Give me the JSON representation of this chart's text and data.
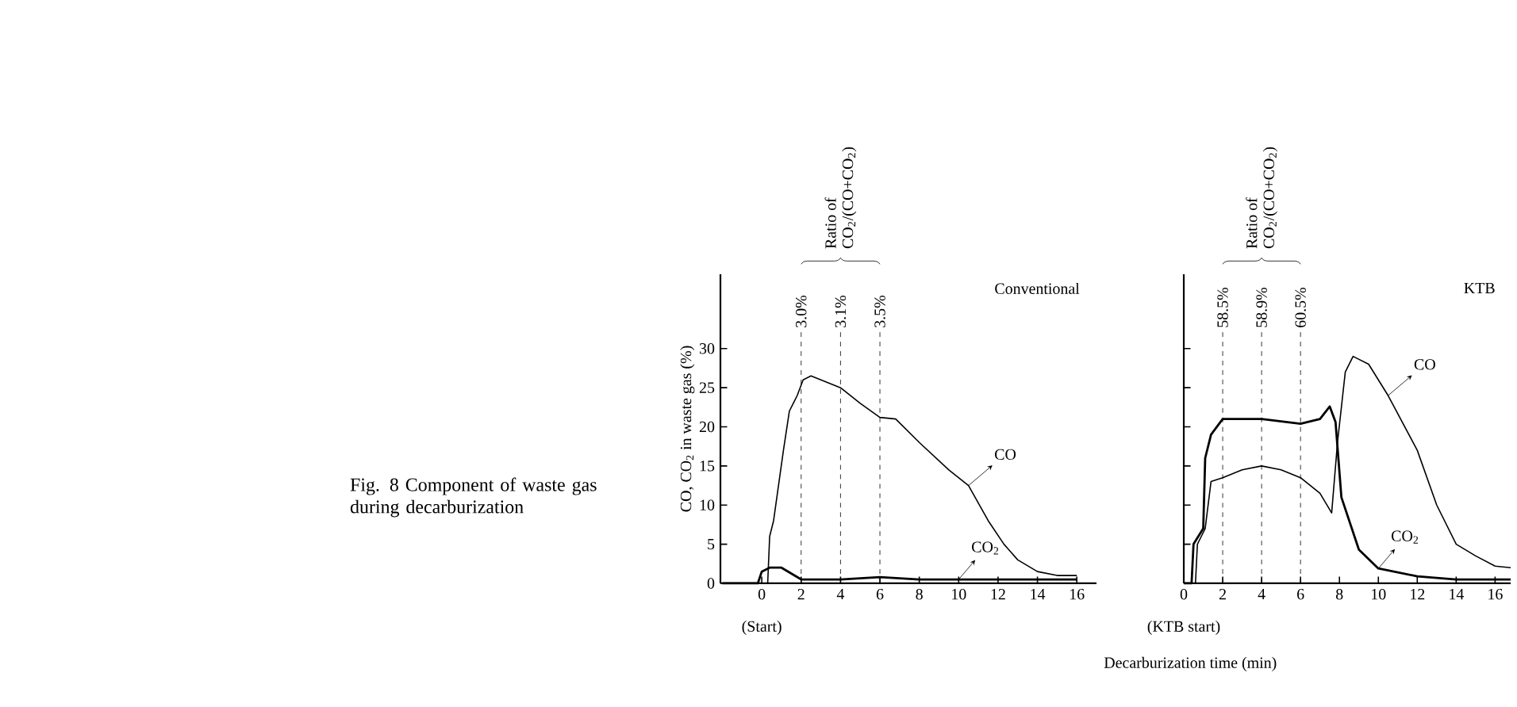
{
  "chart_data": [
    {
      "type": "line",
      "title": "Conventional",
      "ylabel": "CO, CO$_{2}$ in waste gas (%)",
      "annotations": [
        "Ratio of",
        "CO$_{2}$/(CO+CO$_{2}$)",
        "(Start)",
        "3.0%",
        "3.1%",
        "3.5%",
        "Fig. 8  Component of waste gas during decarburization"
      ],
      "xlim": [
        -2.1,
        17
      ],
      "xticks": [
        0,
        2,
        4,
        6,
        8,
        10,
        12,
        14,
        16
      ],
      "ylim": [
        0,
        39.5
      ],
      "yticks": [
        0,
        5,
        10,
        15,
        20,
        25,
        30
      ],
      "ref_lines": [
        {
          "axis": "x",
          "value": 2,
          "color": "#000000",
          "line_style": "dashed"
        },
        {
          "axis": "x",
          "value": 4,
          "color": "#000000",
          "line_style": "dashed"
        },
        {
          "axis": "x",
          "value": 6,
          "color": "#000000",
          "line_style": "dashed"
        }
      ],
      "series": [
        {
          "name": "CO",
          "color": "#000000",
          "x": [
            -2,
            0.3,
            0.4,
            0.6,
            1.1,
            1.4,
            1.8,
            2.1,
            2.5,
            4,
            5,
            6,
            6.8,
            8,
            9.5,
            10.5,
            11.5,
            12.3,
            13,
            14,
            15,
            16
          ],
          "values": [
            0,
            0,
            6,
            8,
            17,
            22,
            24,
            26,
            26.5,
            25,
            23,
            21.2,
            21,
            18,
            14.5,
            12.5,
            8,
            5,
            3,
            1.5,
            1,
            1
          ]
        },
        {
          "name": "CO$_{2}$",
          "color": "#000000",
          "x": [
            -2,
            -0.2,
            0,
            0.4,
            1,
            2,
            4,
            6,
            8,
            10,
            12,
            14,
            16
          ],
          "values": [
            0,
            0,
            1.5,
            2,
            2,
            0.5,
            0.5,
            0.8,
            0.5,
            0.5,
            0.5,
            0.5,
            0.5
          ]
        }
      ]
    },
    {
      "type": "line",
      "title": "KTB",
      "xlabel": "Decarburization time (min)",
      "tick_labels": "x",
      "annotations": [
        "Ratio of",
        "CO$_{2}$/(CO+CO$_{2}$)",
        "(KTB start)",
        "58.5%",
        "58.9%",
        "60.5%"
      ],
      "xlim": [
        0,
        16.8
      ],
      "xticks": [
        0,
        2,
        4,
        6,
        8,
        10,
        12,
        14,
        16
      ],
      "ylim": [
        0,
        39.5
      ],
      "yticks": [
        0,
        5,
        10,
        15,
        20,
        25,
        30
      ],
      "ref_lines": [
        {
          "axis": "x",
          "value": 2,
          "color": "#000000",
          "line_style": "dashed"
        },
        {
          "axis": "x",
          "value": 4,
          "color": "#000000",
          "line_style": "dashed"
        },
        {
          "axis": "x",
          "value": 6,
          "color": "#000000",
          "line_style": "dashed"
        }
      ],
      "series": [
        {
          "name": "CO",
          "color": "#000000",
          "x": [
            0,
            0.6,
            0.7,
            0.9,
            1.1,
            1.4,
            2,
            3,
            4,
            5,
            6,
            7,
            7.6,
            7.9,
            8.3,
            8.7,
            9.5,
            10.5,
            12,
            13,
            14,
            15,
            16,
            16.8
          ],
          "values": [
            0,
            0,
            5,
            6,
            7,
            13,
            13.5,
            14.5,
            15,
            14.5,
            13.5,
            11.5,
            9,
            18,
            27,
            29,
            28,
            24,
            17,
            10,
            5,
            3.5,
            2.2,
            2
          ]
        },
        {
          "name": "CO$_{2}$",
          "color": "#000000",
          "x": [
            0,
            0.4,
            0.5,
            1,
            1.1,
            1.4,
            2,
            4,
            6,
            7,
            7.5,
            7.8,
            8.1,
            9,
            10,
            12,
            14,
            16,
            16.8
          ],
          "values": [
            0,
            0,
            5,
            7,
            16,
            19,
            21,
            21,
            20.4,
            21,
            22.6,
            20.6,
            11,
            4.3,
            1.9,
            0.9,
            0.5,
            0.5,
            0.5
          ]
        }
      ]
    }
  ]
}
